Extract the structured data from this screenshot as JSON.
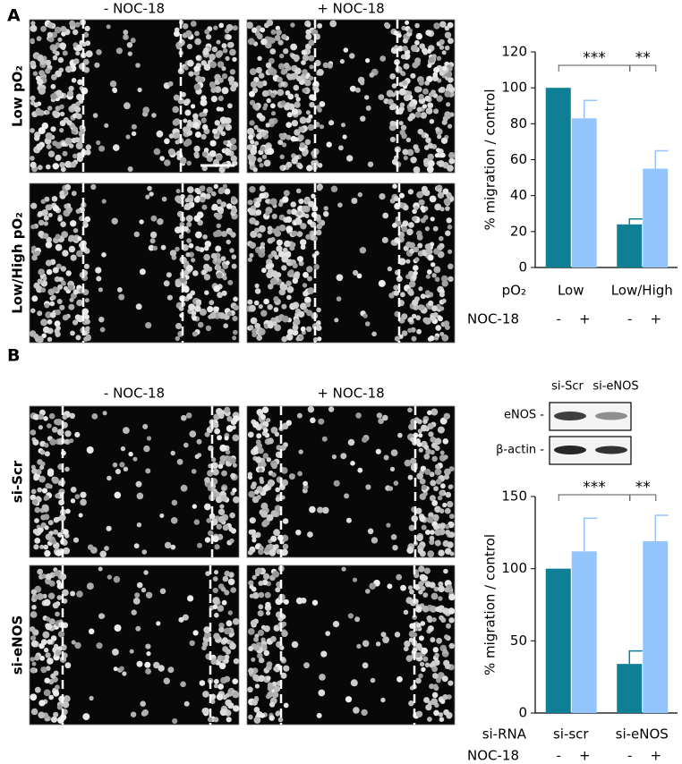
{
  "panels": [
    {
      "label": "A",
      "columns": [
        "- NOC-18",
        "+ NOC-18"
      ],
      "rows": [
        "Low pO₂",
        "Low/High pO₂"
      ]
    },
    {
      "label": "B",
      "columns": [
        "- NOC-18",
        "+ NOC-18"
      ],
      "rows": [
        "si-Scr",
        "si-eNOS"
      ],
      "blot": {
        "lanes": [
          "si-Scr",
          "si-eNOS"
        ],
        "bands": [
          "eNOS  -",
          "β-actin -"
        ]
      }
    }
  ],
  "chart_data": [
    {
      "type": "bar",
      "ylabel": "% migration / control",
      "group_label": "pO₂",
      "categories": [
        "Low",
        "Low/High"
      ],
      "row_label": "NOC-18",
      "series": [
        {
          "name": "-",
          "color": "#0e7f94",
          "values": [
            100,
            24
          ],
          "errors": [
            null,
            3
          ]
        },
        {
          "name": "+",
          "color": "#93c5fd",
          "values": [
            83,
            55
          ],
          "errors": [
            10,
            10
          ]
        }
      ],
      "ylim": [
        0,
        120
      ],
      "yticks": [
        0,
        20,
        40,
        60,
        80,
        100,
        120
      ],
      "annotations": [
        "***",
        "**"
      ]
    },
    {
      "type": "bar",
      "ylabel": "% migration / control",
      "group_label": "si-RNA",
      "categories": [
        "si-scr",
        "si-eNOS"
      ],
      "row_label": "NOC-18",
      "series": [
        {
          "name": "-",
          "color": "#0e7f94",
          "values": [
            100,
            34
          ],
          "errors": [
            null,
            9
          ]
        },
        {
          "name": "+",
          "color": "#93c5fd",
          "values": [
            112,
            119
          ],
          "errors": [
            23,
            18
          ]
        }
      ],
      "ylim": [
        0,
        150
      ],
      "yticks": [
        0,
        50,
        100,
        150
      ],
      "annotations": [
        "***",
        "**"
      ]
    }
  ]
}
